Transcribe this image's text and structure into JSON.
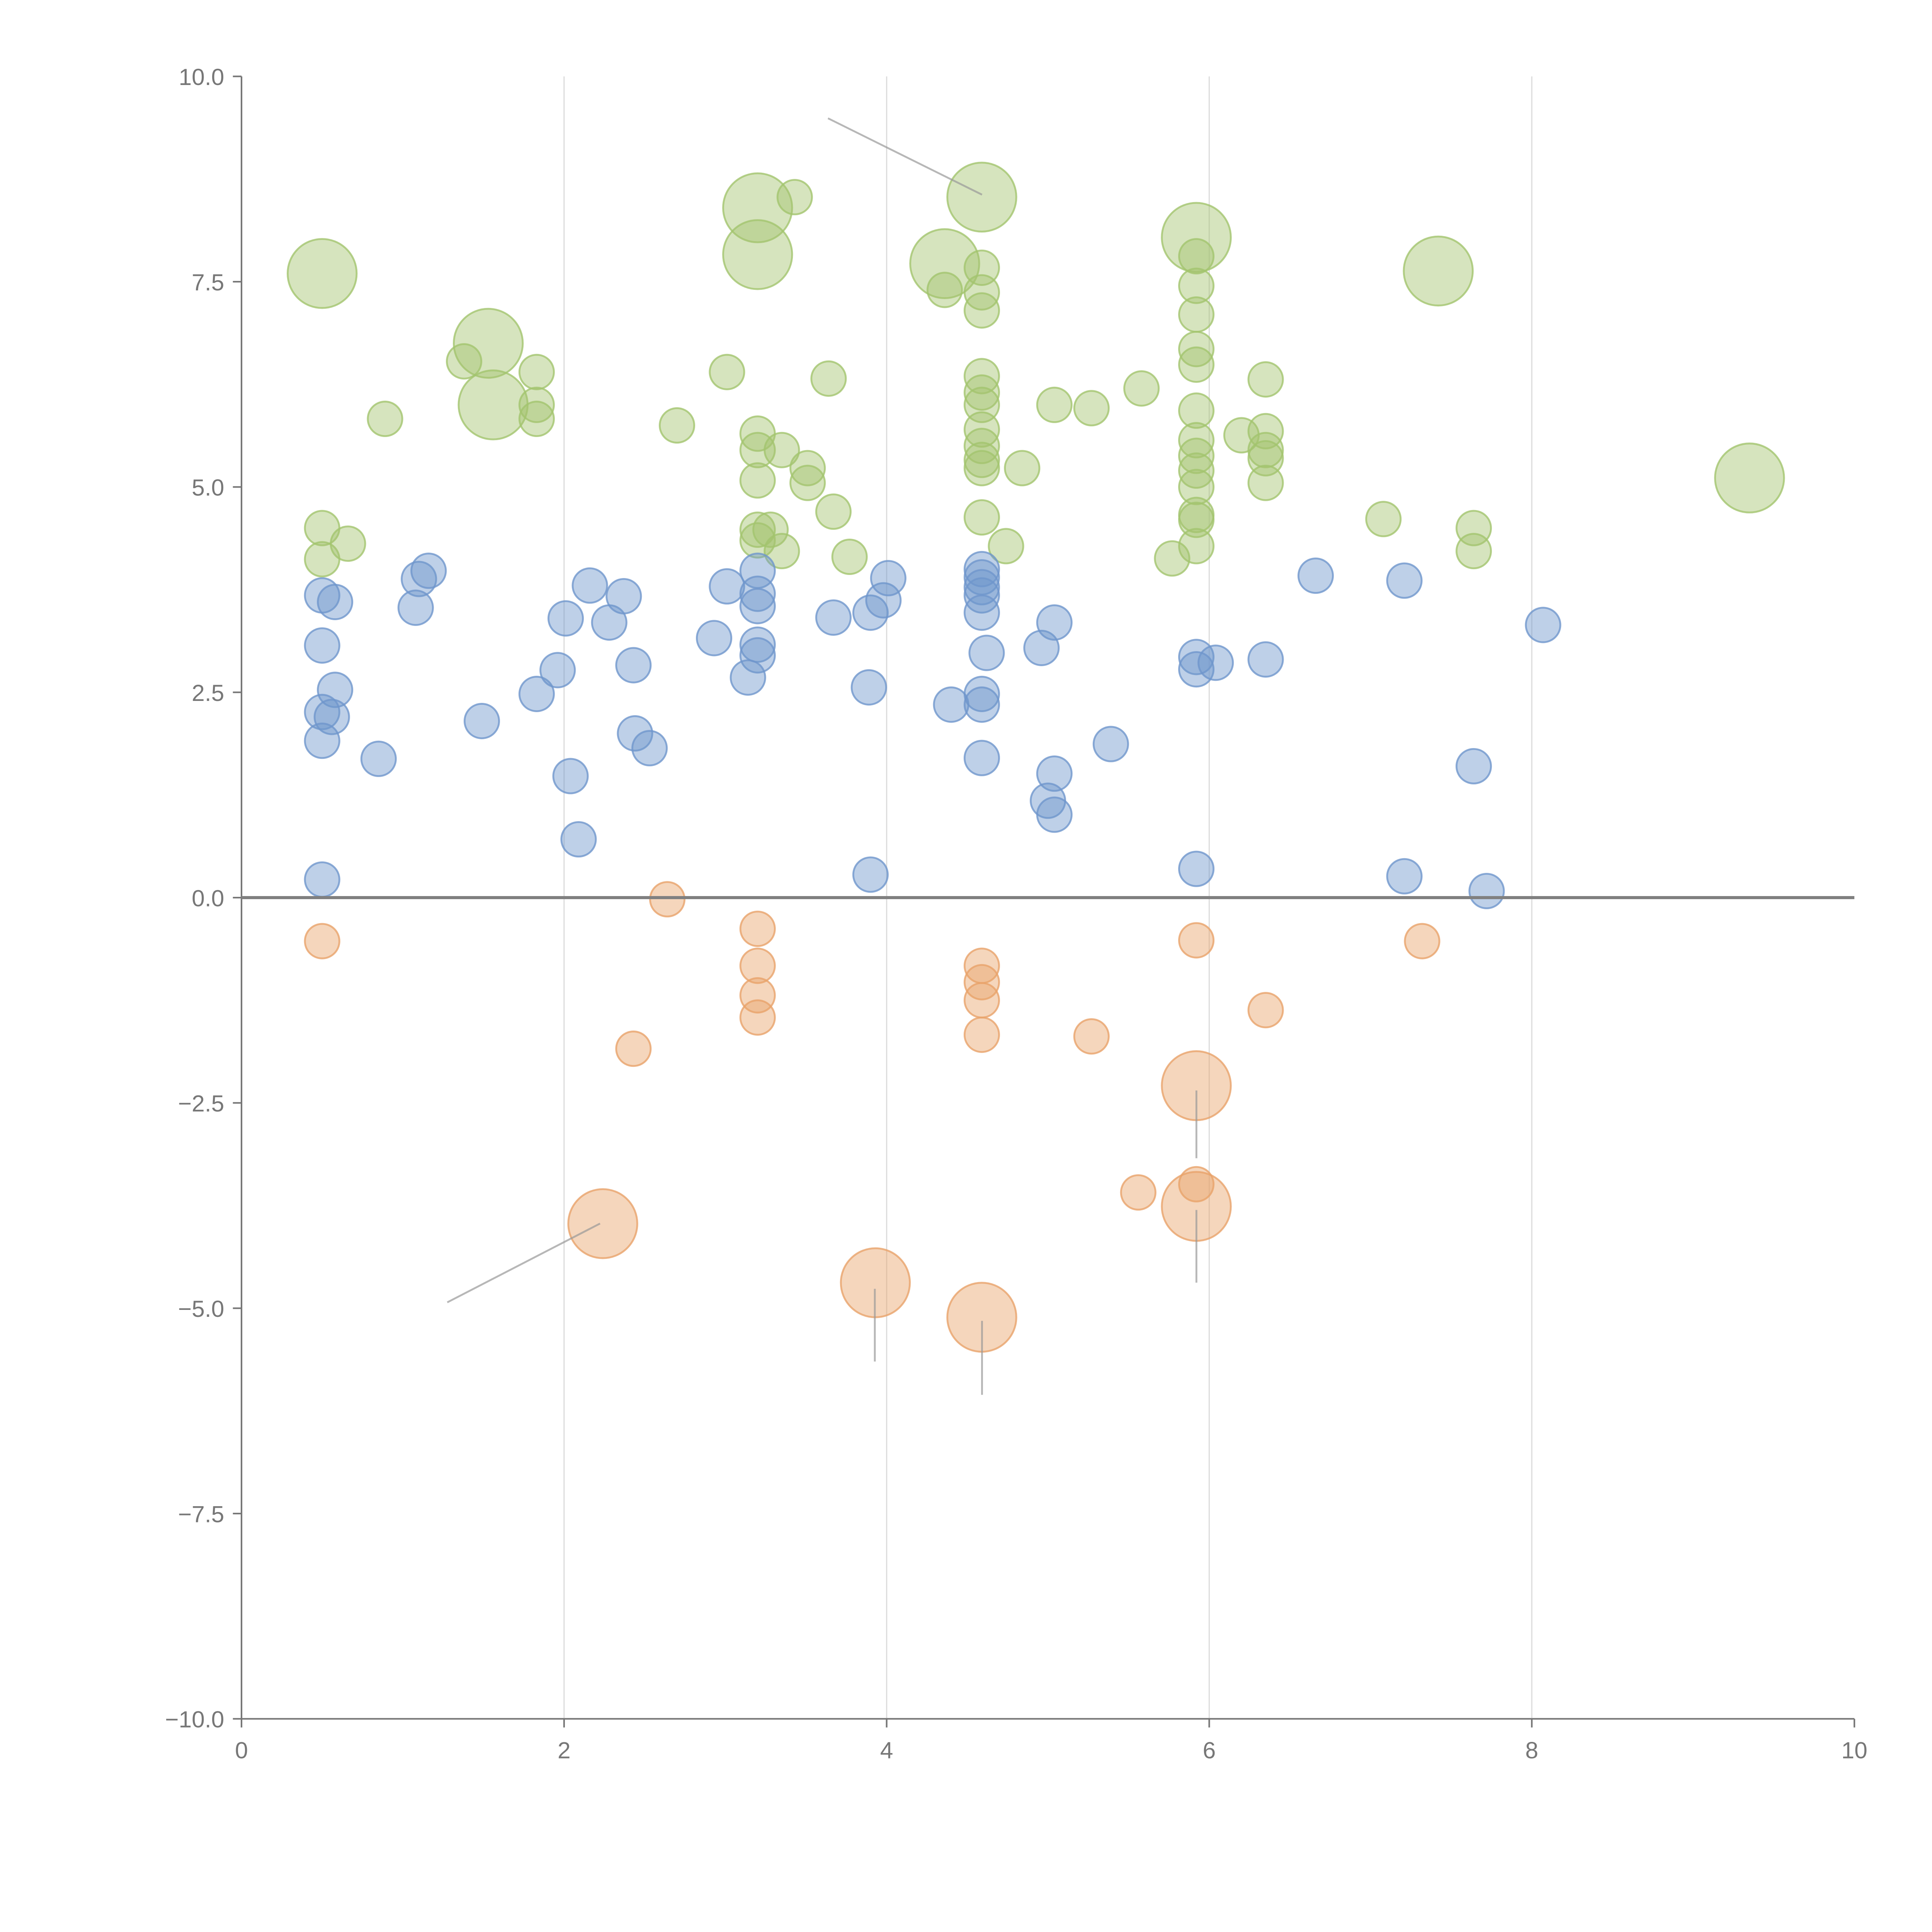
{
  "chart_data": {
    "type": "scatter",
    "title": "",
    "xlabel": "",
    "ylabel": "",
    "xlim": [
      0,
      10
    ],
    "ylim": [
      -10,
      10
    ],
    "grid": "vertical",
    "x_ticks": [
      "0",
      "2",
      "4",
      "6",
      "8",
      "10"
    ],
    "y_ticks": [
      "10.0",
      "7.5",
      "5.0",
      "2.5",
      "0.0",
      "−2.5",
      "−5.0",
      "−7.5",
      "−10.0"
    ],
    "x_tick_values": [
      0,
      2,
      4,
      6,
      8,
      10
    ],
    "y_tick_values": [
      10,
      7.5,
      5,
      2.5,
      0,
      -2.5,
      -5,
      -7.5,
      -10
    ],
    "point_format": "[x, y, size]",
    "series": [
      {
        "name": "green",
        "color": "#a3c46e",
        "points": [
          [
            0.5,
            7.6,
            2
          ],
          [
            1.53,
            6.75,
            2
          ],
          [
            1.56,
            6.0,
            2
          ],
          [
            3.2,
            8.4,
            2
          ],
          [
            3.2,
            7.83,
            2
          ],
          [
            4.36,
            7.72,
            2
          ],
          [
            4.59,
            8.53,
            2
          ],
          [
            5.92,
            8.04,
            2
          ],
          [
            7.42,
            7.63,
            2
          ],
          [
            9.35,
            5.11,
            2
          ],
          [
            3.43,
            8.53,
            1
          ],
          [
            1.38,
            6.53,
            1
          ],
          [
            1.83,
            6.4,
            1
          ],
          [
            1.83,
            6.0,
            1
          ],
          [
            1.83,
            5.83,
            1
          ],
          [
            0.89,
            5.83,
            1
          ],
          [
            2.7,
            5.75,
            1
          ],
          [
            3.01,
            6.4,
            1
          ],
          [
            3.64,
            6.32,
            1
          ],
          [
            3.2,
            5.65,
            1
          ],
          [
            3.2,
            5.45,
            1
          ],
          [
            3.2,
            5.08,
            1
          ],
          [
            3.35,
            5.45,
            1
          ],
          [
            3.51,
            5.23,
            1
          ],
          [
            3.51,
            5.05,
            1
          ],
          [
            3.67,
            4.7,
            1
          ],
          [
            3.77,
            4.15,
            1
          ],
          [
            3.2,
            4.48,
            1
          ],
          [
            3.2,
            4.35,
            1
          ],
          [
            3.28,
            4.48,
            1
          ],
          [
            3.35,
            4.22,
            1
          ],
          [
            0.5,
            4.5,
            1
          ],
          [
            0.5,
            4.12,
            1
          ],
          [
            0.66,
            4.31,
            1
          ],
          [
            4.36,
            7.4,
            1
          ],
          [
            4.59,
            7.67,
            1
          ],
          [
            4.59,
            7.37,
            1
          ],
          [
            4.59,
            7.15,
            1
          ],
          [
            4.59,
            6.35,
            1
          ],
          [
            4.59,
            6.15,
            1
          ],
          [
            4.59,
            6.0,
            1
          ],
          [
            4.59,
            5.7,
            1
          ],
          [
            4.59,
            5.5,
            1
          ],
          [
            4.59,
            5.33,
            1
          ],
          [
            4.59,
            5.23,
            1
          ],
          [
            4.59,
            4.63,
            1
          ],
          [
            4.74,
            4.28,
            1
          ],
          [
            4.84,
            5.23,
            1
          ],
          [
            5.04,
            6.0,
            1
          ],
          [
            5.27,
            5.96,
            1
          ],
          [
            5.58,
            6.2,
            1
          ],
          [
            5.92,
            7.81,
            1
          ],
          [
            5.92,
            7.45,
            1
          ],
          [
            5.92,
            7.1,
            1
          ],
          [
            5.92,
            6.68,
            1
          ],
          [
            5.92,
            6.49,
            1
          ],
          [
            5.92,
            5.93,
            1
          ],
          [
            5.92,
            5.57,
            1
          ],
          [
            5.92,
            5.38,
            1
          ],
          [
            5.92,
            5.2,
            1
          ],
          [
            5.92,
            5.0,
            1
          ],
          [
            5.92,
            4.66,
            1
          ],
          [
            5.92,
            4.6,
            1
          ],
          [
            5.92,
            4.28,
            1
          ],
          [
            5.77,
            4.13,
            1
          ],
          [
            6.2,
            5.63,
            1
          ],
          [
            6.35,
            6.31,
            1
          ],
          [
            6.35,
            5.68,
            1
          ],
          [
            6.35,
            5.45,
            1
          ],
          [
            6.35,
            5.35,
            1
          ],
          [
            6.35,
            5.05,
            1
          ],
          [
            7.08,
            4.61,
            1
          ],
          [
            7.64,
            4.5,
            1
          ],
          [
            7.64,
            4.22,
            1
          ]
        ]
      },
      {
        "name": "blue",
        "color": "#6f96cc",
        "points": [
          [
            0.5,
            3.68,
            1
          ],
          [
            0.58,
            3.6,
            1
          ],
          [
            0.5,
            3.07,
            1
          ],
          [
            0.58,
            2.53,
            1
          ],
          [
            0.5,
            2.26,
            1
          ],
          [
            0.56,
            2.2,
            1
          ],
          [
            0.5,
            1.91,
            1
          ],
          [
            0.85,
            1.69,
            1
          ],
          [
            0.5,
            0.22,
            1
          ],
          [
            1.1,
            3.88,
            1
          ],
          [
            1.16,
            3.98,
            1
          ],
          [
            1.08,
            3.53,
            1
          ],
          [
            1.49,
            2.15,
            1
          ],
          [
            1.83,
            2.48,
            1
          ],
          [
            1.96,
            2.77,
            1
          ],
          [
            2.01,
            3.4,
            1
          ],
          [
            2.16,
            3.8,
            1
          ],
          [
            2.28,
            3.35,
            1
          ],
          [
            2.37,
            3.67,
            1
          ],
          [
            2.43,
            2.83,
            1
          ],
          [
            2.44,
            2.0,
            1
          ],
          [
            2.53,
            1.82,
            1
          ],
          [
            2.04,
            1.48,
            1
          ],
          [
            2.09,
            0.71,
            1
          ],
          [
            2.93,
            3.16,
            1
          ],
          [
            3.01,
            3.79,
            1
          ],
          [
            3.2,
            3.98,
            1
          ],
          [
            3.2,
            3.7,
            1
          ],
          [
            3.2,
            3.55,
            1
          ],
          [
            3.2,
            3.08,
            1
          ],
          [
            3.2,
            2.95,
            1
          ],
          [
            3.14,
            2.68,
            1
          ],
          [
            3.67,
            3.41,
            1
          ],
          [
            3.89,
            2.56,
            1
          ],
          [
            3.9,
            3.47,
            1
          ],
          [
            3.98,
            3.62,
            1
          ],
          [
            4.01,
            3.89,
            1
          ],
          [
            3.9,
            0.28,
            1
          ],
          [
            4.4,
            2.35,
            1
          ],
          [
            4.59,
            4.0,
            1
          ],
          [
            4.59,
            3.9,
            1
          ],
          [
            4.59,
            3.78,
            1
          ],
          [
            4.59,
            3.68,
            1
          ],
          [
            4.59,
            3.47,
            1
          ],
          [
            4.62,
            2.98,
            1
          ],
          [
            4.59,
            2.48,
            1
          ],
          [
            4.59,
            2.35,
            1
          ],
          [
            4.59,
            1.7,
            1
          ],
          [
            4.96,
            3.04,
            1
          ],
          [
            5.04,
            3.35,
            1
          ],
          [
            5.04,
            1.51,
            1
          ],
          [
            5.0,
            1.18,
            1
          ],
          [
            5.04,
            1.01,
            1
          ],
          [
            5.39,
            1.87,
            1
          ],
          [
            5.92,
            2.93,
            1
          ],
          [
            5.92,
            2.78,
            1
          ],
          [
            6.04,
            2.86,
            1
          ],
          [
            5.92,
            0.35,
            1
          ],
          [
            6.35,
            2.9,
            1
          ],
          [
            6.66,
            3.92,
            1
          ],
          [
            7.21,
            3.86,
            1
          ],
          [
            7.21,
            0.26,
            1
          ],
          [
            7.64,
            1.6,
            1
          ],
          [
            7.72,
            0.08,
            1
          ],
          [
            8.07,
            3.32,
            1
          ]
        ]
      },
      {
        "name": "orange",
        "color": "#e8a36a",
        "points": [
          [
            0.5,
            -0.53,
            1
          ],
          [
            2.64,
            -0.02,
            1
          ],
          [
            2.43,
            -1.84,
            1
          ],
          [
            3.2,
            -0.38,
            1
          ],
          [
            3.2,
            -0.83,
            1
          ],
          [
            3.2,
            -1.19,
            1
          ],
          [
            3.2,
            -1.46,
            1
          ],
          [
            4.59,
            -0.83,
            1
          ],
          [
            4.59,
            -1.03,
            1
          ],
          [
            4.59,
            -1.25,
            1
          ],
          [
            4.59,
            -1.67,
            1
          ],
          [
            5.27,
            -1.69,
            1
          ],
          [
            5.56,
            -3.59,
            1
          ],
          [
            5.92,
            -0.52,
            1
          ],
          [
            5.92,
            -3.49,
            1
          ],
          [
            6.35,
            -1.37,
            1
          ],
          [
            7.32,
            -0.53,
            1
          ],
          [
            2.24,
            -3.97,
            2
          ],
          [
            3.93,
            -4.69,
            2
          ],
          [
            4.59,
            -5.11,
            2
          ],
          [
            5.92,
            -2.29,
            2
          ],
          [
            5.92,
            -3.76,
            2
          ]
        ]
      }
    ]
  }
}
